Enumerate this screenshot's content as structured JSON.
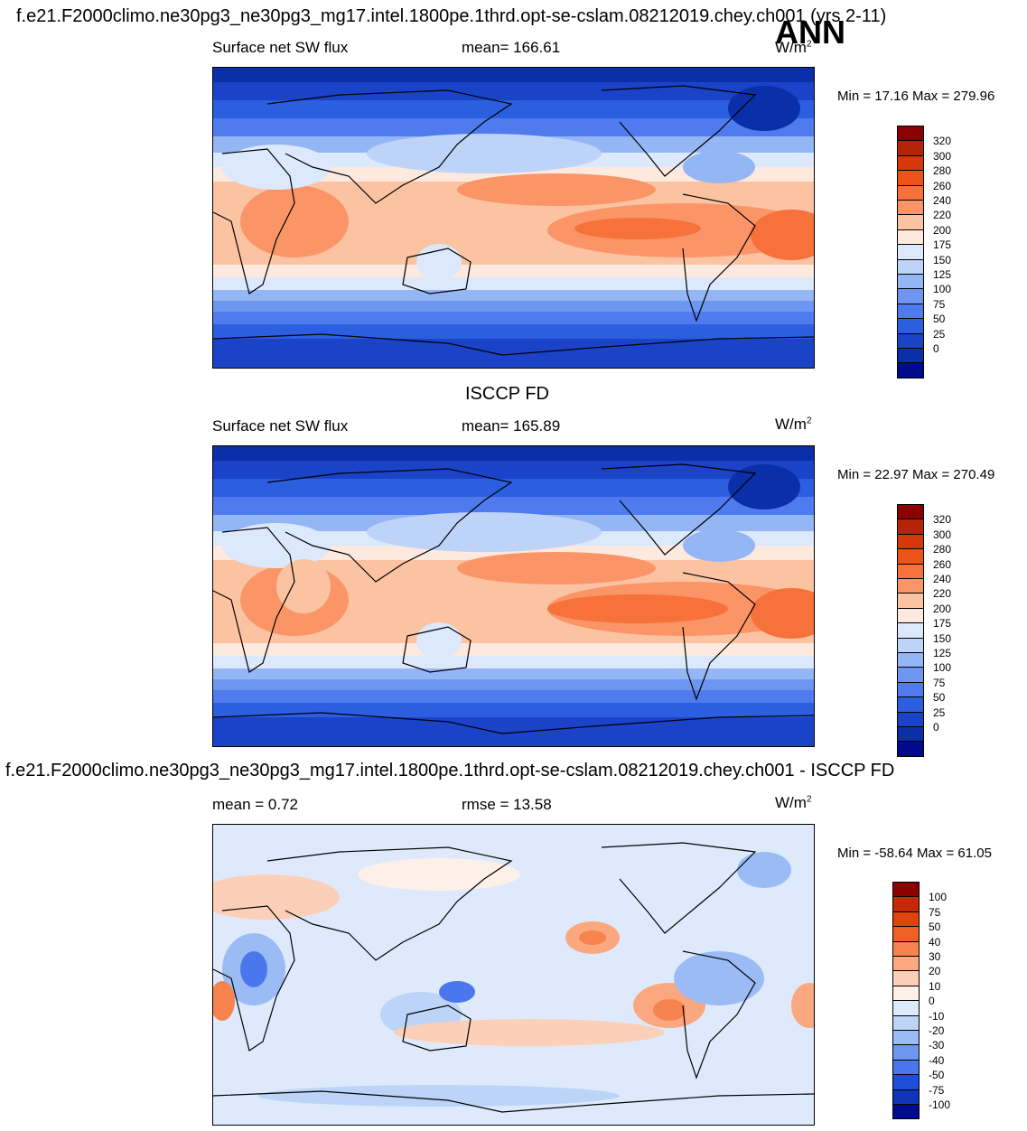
{
  "header": {
    "title": "f.e21.F2000climo.ne30pg3_ne30pg3_mg17.intel.1800pe.1thrd.opt-se-cslam.08212019.chey.ch001 (yrs 2-11)",
    "season": "ANN"
  },
  "panels": [
    {
      "id": "model",
      "left_label": "Surface net SW flux",
      "center_label": "mean= 166.61",
      "unit_base": "W/m",
      "unit_exp": "2",
      "minmax": "Min =  17.16 Max = 279.96",
      "ticks": [
        "320",
        "300",
        "280",
        "260",
        "240",
        "220",
        "200",
        "175",
        "150",
        "125",
        "100",
        "75",
        "50",
        "25",
        "0"
      ]
    },
    {
      "id": "obs",
      "section_title": "ISCCP FD",
      "left_label": "Surface net SW flux",
      "center_label": "mean= 165.89",
      "unit_base": "W/m",
      "unit_exp": "2",
      "minmax": "Min =  22.97 Max = 270.49",
      "ticks": [
        "320",
        "300",
        "280",
        "260",
        "240",
        "220",
        "200",
        "175",
        "150",
        "125",
        "100",
        "75",
        "50",
        "25",
        "0"
      ]
    },
    {
      "id": "diff",
      "section_title": "f.e21.F2000climo.ne30pg3_ne30pg3_mg17.intel.1800pe.1thrd.opt-se-cslam.08212019.chey.ch001 - ISCCP FD",
      "left_label": "mean =   0.72",
      "center_label": "rmse =  13.58",
      "unit_base": "W/m",
      "unit_exp": "2",
      "minmax": "Min = -58.64 Max =  61.05",
      "ticks": [
        "100",
        "75",
        "50",
        "40",
        "30",
        "20",
        "10",
        "0",
        "-10",
        "-20",
        "-30",
        "-40",
        "-50",
        "-75",
        "-100"
      ]
    }
  ],
  "colors": {
    "abs_scale": [
      "#8b0000",
      "#b52308",
      "#d6380c",
      "#ee5218",
      "#f7713b",
      "#fb9568",
      "#fcc3a3",
      "#fde9de",
      "#dce8fb",
      "#bdd3f8",
      "#95b6f5",
      "#6d96f1",
      "#4f7bee",
      "#2b5fe0",
      "#1a43c8",
      "#0a2fa8",
      "#000a8c"
    ],
    "diff_scale": [
      "#8b0000",
      "#c42a08",
      "#e0440f",
      "#f06024",
      "#f7844f",
      "#fba77f",
      "#fcd0b8",
      "#fdf0e8",
      "#deeafc",
      "#bcd4f8",
      "#9bbbf5",
      "#6d96f1",
      "#4a78ec",
      "#1f4fd8",
      "#0f36b8",
      "#000a8c"
    ]
  },
  "chart_data": [
    {
      "type": "heatmap",
      "title": "Surface net SW flux",
      "subtitle": "mean= 166.61",
      "units": "W/m2",
      "min": 17.16,
      "max": 279.96,
      "mean": 166.61,
      "levels": [
        0,
        25,
        50,
        75,
        100,
        125,
        150,
        175,
        200,
        220,
        240,
        260,
        280,
        300,
        320
      ]
    },
    {
      "type": "heatmap",
      "title": "Surface net SW flux",
      "subtitle": "mean= 165.89",
      "units": "W/m2",
      "min": 22.97,
      "max": 270.49,
      "mean": 165.89,
      "levels": [
        0,
        25,
        50,
        75,
        100,
        125,
        150,
        175,
        200,
        220,
        240,
        260,
        280,
        300,
        320
      ]
    },
    {
      "type": "heatmap",
      "units": "W/m2",
      "min": -58.64,
      "max": 61.05,
      "mean": 0.72,
      "rmse": 13.58,
      "levels": [
        -100,
        -75,
        -50,
        -40,
        -30,
        -20,
        -10,
        0,
        10,
        20,
        30,
        40,
        50,
        75,
        100
      ]
    }
  ]
}
